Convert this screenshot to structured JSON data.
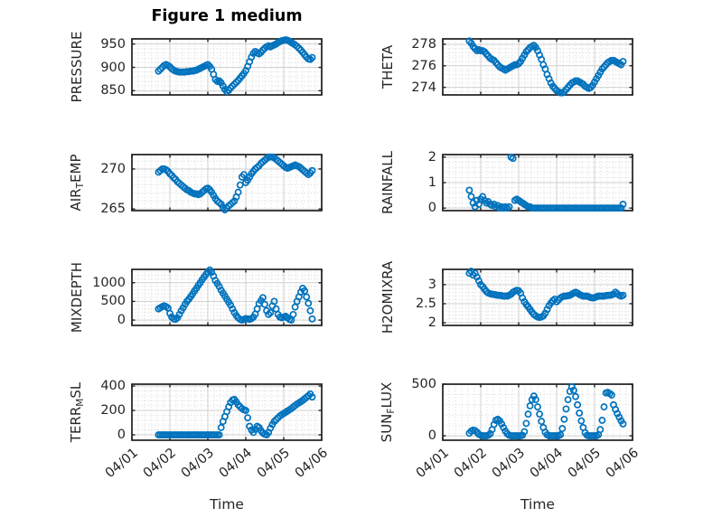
{
  "title": "Figure 1 medium",
  "colors": {
    "marker": "#0072BD",
    "axis": "#1f1f1f",
    "grid_major": "#cfcfcf",
    "grid_minor": "#d4d4d4",
    "text": "#262626",
    "background": "#ffffff"
  },
  "chart_data": {
    "type": "scatter",
    "marker": "o",
    "marker_color": "#0072BD",
    "xlabel": "Time",
    "xlim": [
      0,
      5
    ],
    "xtick_values": [
      0,
      1,
      2,
      3,
      4,
      5
    ],
    "xtick_labels": [
      "04/01",
      "04/02",
      "04/03",
      "04/04",
      "04/05",
      "04/06"
    ],
    "grid": "major solid + minor dotted",
    "legend": "none",
    "x": [
      0.7,
      0.75,
      0.8,
      0.85,
      0.9,
      0.95,
      1.0,
      1.05,
      1.1,
      1.15,
      1.2,
      1.25,
      1.3,
      1.35,
      1.4,
      1.45,
      1.5,
      1.55,
      1.6,
      1.65,
      1.7,
      1.75,
      1.8,
      1.85,
      1.9,
      1.95,
      2.0,
      2.05,
      2.1,
      2.15,
      2.2,
      2.25,
      2.3,
      2.35,
      2.4,
      2.45,
      2.5,
      2.55,
      2.6,
      2.65,
      2.7,
      2.75,
      2.8,
      2.85,
      2.9,
      2.95,
      3.0,
      3.05,
      3.1,
      3.15,
      3.2,
      3.25,
      3.3,
      3.35,
      3.4,
      3.45,
      3.5,
      3.55,
      3.6,
      3.65,
      3.7,
      3.75,
      3.8,
      3.85,
      3.9,
      3.95,
      4.0,
      4.05,
      4.1,
      4.15,
      4.2,
      4.25,
      4.3,
      4.35,
      4.4,
      4.45,
      4.5,
      4.55,
      4.6,
      4.65,
      4.7,
      4.75
    ],
    "series": [
      {
        "name": "PRESSURE",
        "row": 1,
        "col": 1,
        "show_xticks": false,
        "ylim": [
          841,
          961
        ],
        "ytick_values": [
          950,
          900,
          850
        ],
        "ytick_labels": [
          "950",
          "900",
          "850"
        ],
        "minor_step": 10,
        "values": [
          892,
          896,
          900,
          904,
          906,
          904,
          901,
          897,
          894,
          892,
          891,
          890,
          890,
          890,
          890,
          891,
          891,
          892,
          892,
          893,
          894,
          896,
          898,
          900,
          902,
          904,
          906,
          902,
          896,
          885,
          874,
          870,
          871,
          867,
          860,
          853,
          848,
          851,
          856,
          860,
          864,
          868,
          872,
          877,
          882,
          887,
          893,
          902,
          912,
          922,
          930,
          934,
          931,
          929,
          932,
          937,
          941,
          944,
          946,
          944,
          946,
          948,
          950,
          953,
          955,
          957,
          958,
          959,
          958,
          956,
          953,
          951,
          948,
          945,
          941,
          937,
          932,
          927,
          922,
          918,
          917,
          921
        ]
      },
      {
        "name": "THETA",
        "row": 1,
        "col": 2,
        "show_xticks": false,
        "ylim": [
          273.3,
          278.5
        ],
        "ytick_values": [
          278,
          276,
          274
        ],
        "ytick_labels": [
          "278",
          "276",
          "274"
        ],
        "minor_step": 0.4,
        "values": [
          278.3,
          278.1,
          277.8,
          277.6,
          277.4,
          277.5,
          277.4,
          277.4,
          277.3,
          277.1,
          276.9,
          276.7,
          276.6,
          276.5,
          276.3,
          276.1,
          275.9,
          275.8,
          275.7,
          275.6,
          275.7,
          275.8,
          275.9,
          276.0,
          276.1,
          276.1,
          276.2,
          276.4,
          276.7,
          277.0,
          277.3,
          277.5,
          277.7,
          277.8,
          277.9,
          277.7,
          277.4,
          277.0,
          276.6,
          276.1,
          275.7,
          275.2,
          274.8,
          274.4,
          274.1,
          273.9,
          273.7,
          273.6,
          273.5,
          273.5,
          273.6,
          273.8,
          274.0,
          274.2,
          274.4,
          274.5,
          274.6,
          274.6,
          274.5,
          274.4,
          274.3,
          274.1,
          274.0,
          273.9,
          274.0,
          274.2,
          274.5,
          274.8,
          275.1,
          275.4,
          275.7,
          275.9,
          276.1,
          276.3,
          276.4,
          276.5,
          276.5,
          276.4,
          276.3,
          276.2,
          276.1,
          276.4
        ]
      },
      {
        "name": "AIR_TEMP",
        "row": 2,
        "col": 1,
        "show_xticks": false,
        "ylim": [
          264.8,
          271.8
        ],
        "ytick_values": [
          270,
          265
        ],
        "ytick_labels": [
          "270",
          "265"
        ],
        "minor_step": 1,
        "values": [
          269.6,
          269.8,
          270.0,
          270.0,
          269.9,
          269.7,
          269.4,
          269.2,
          268.9,
          268.7,
          268.4,
          268.2,
          268.0,
          267.8,
          267.6,
          267.4,
          267.3,
          267.1,
          267.0,
          266.9,
          266.9,
          266.8,
          266.9,
          267.1,
          267.3,
          267.5,
          267.6,
          267.4,
          267.1,
          266.7,
          266.3,
          266.0,
          265.8,
          265.6,
          265.2,
          264.9,
          265.1,
          265.4,
          265.6,
          265.8,
          266.0,
          266.5,
          267.1,
          268.0,
          269.0,
          269.3,
          268.3,
          268.6,
          269.0,
          269.4,
          269.7,
          270.0,
          270.2,
          270.4,
          270.7,
          270.9,
          271.1,
          271.3,
          271.5,
          271.5,
          271.5,
          271.4,
          271.2,
          271.0,
          270.8,
          270.6,
          270.4,
          270.2,
          270.1,
          270.2,
          270.3,
          270.4,
          270.5,
          270.4,
          270.3,
          270.1,
          269.9,
          269.7,
          269.5,
          269.3,
          269.5,
          269.8
        ]
      },
      {
        "name": "RAINFALL",
        "row": 2,
        "col": 2,
        "show_xticks": false,
        "ylim": [
          -0.1,
          2.1
        ],
        "ytick_values": [
          2,
          1,
          0
        ],
        "ytick_labels": [
          "2",
          "1",
          "0"
        ],
        "minor_step": 0.2,
        "values": [
          0.7,
          0.45,
          0.2,
          0.05,
          0.3,
          0.15,
          0.35,
          0.45,
          0.3,
          0.2,
          0.25,
          0.15,
          0.1,
          0.15,
          0.05,
          0.1,
          0,
          0.05,
          0,
          0.05,
          0,
          0.05,
          2.0,
          1.95,
          0.3,
          0.35,
          0.3,
          0.25,
          0.2,
          0.15,
          0.1,
          0.05,
          0.05,
          0,
          0,
          0,
          0,
          0,
          0,
          0,
          0,
          0,
          0,
          0,
          0,
          0,
          0,
          0,
          0,
          0,
          0,
          0,
          0,
          0,
          0,
          0,
          0,
          0,
          0,
          0,
          0,
          0,
          0,
          0,
          0,
          0,
          0,
          0,
          0,
          0,
          0,
          0,
          0,
          0,
          0,
          0,
          0,
          0,
          0,
          0,
          0,
          0.15
        ]
      },
      {
        "name": "MIXDEPTH",
        "row": 3,
        "col": 1,
        "show_xticks": false,
        "ylim": [
          -143,
          1357
        ],
        "ytick_values": [
          1000,
          500,
          0
        ],
        "ytick_labels": [
          "1000",
          "500",
          "0"
        ],
        "minor_step": 100,
        "values": [
          300,
          330,
          360,
          380,
          360,
          320,
          180,
          80,
          30,
          20,
          60,
          150,
          250,
          330,
          420,
          500,
          560,
          630,
          700,
          780,
          850,
          930,
          1000,
          1080,
          1150,
          1220,
          1290,
          1340,
          1280,
          1180,
          1060,
          980,
          900,
          800,
          720,
          640,
          560,
          480,
          400,
          300,
          200,
          120,
          60,
          20,
          0,
          20,
          40,
          30,
          20,
          40,
          80,
          160,
          300,
          440,
          520,
          600,
          420,
          250,
          150,
          200,
          380,
          500,
          300,
          150,
          80,
          60,
          80,
          100,
          60,
          20,
          0,
          150,
          350,
          500,
          620,
          750,
          850,
          780,
          620,
          450,
          250,
          30
        ]
      },
      {
        "name": "H2OMIXRA",
        "row": 3,
        "col": 2,
        "show_xticks": false,
        "ylim": [
          1.93,
          3.4
        ],
        "ytick_values": [
          3,
          2.5,
          2
        ],
        "ytick_labels": [
          "3",
          "2.5",
          "2"
        ],
        "minor_step": 0.1,
        "values": [
          3.3,
          3.35,
          3.25,
          3.3,
          3.2,
          3.1,
          3.0,
          2.95,
          2.88,
          2.82,
          2.78,
          2.76,
          2.75,
          2.74,
          2.73,
          2.72,
          2.72,
          2.71,
          2.7,
          2.7,
          2.7,
          2.72,
          2.75,
          2.8,
          2.83,
          2.85,
          2.84,
          2.78,
          2.65,
          2.55,
          2.48,
          2.42,
          2.35,
          2.28,
          2.22,
          2.18,
          2.15,
          2.14,
          2.15,
          2.18,
          2.25,
          2.35,
          2.45,
          2.52,
          2.58,
          2.62,
          2.55,
          2.6,
          2.65,
          2.68,
          2.7,
          2.7,
          2.71,
          2.72,
          2.75,
          2.78,
          2.8,
          2.78,
          2.74,
          2.72,
          2.7,
          2.7,
          2.7,
          2.68,
          2.66,
          2.65,
          2.66,
          2.68,
          2.7,
          2.7,
          2.7,
          2.7,
          2.71,
          2.72,
          2.72,
          2.73,
          2.75,
          2.8,
          2.76,
          2.72,
          2.7,
          2.72
        ]
      },
      {
        "name": "TERR_MSL",
        "row": 4,
        "col": 1,
        "show_xticks": true,
        "ylim": [
          -44,
          415
        ],
        "ytick_values": [
          400,
          200,
          0
        ],
        "ytick_labels": [
          "400",
          "200",
          "0"
        ],
        "minor_step": 40,
        "values": [
          0,
          0,
          0,
          0,
          0,
          0,
          0,
          0,
          0,
          0,
          0,
          0,
          0,
          0,
          0,
          0,
          0,
          0,
          0,
          0,
          0,
          0,
          0,
          0,
          0,
          0,
          0,
          0,
          0,
          0,
          0,
          0,
          0,
          60,
          110,
          150,
          190,
          230,
          265,
          285,
          290,
          270,
          245,
          230,
          215,
          205,
          200,
          140,
          70,
          40,
          20,
          45,
          70,
          60,
          35,
          15,
          5,
          0,
          20,
          55,
          85,
          110,
          125,
          140,
          155,
          165,
          175,
          185,
          195,
          205,
          215,
          228,
          240,
          252,
          262,
          272,
          282,
          295,
          308,
          320,
          335,
          310
        ]
      },
      {
        "name": "SUN_FLUX",
        "row": 4,
        "col": 2,
        "show_xticks": true,
        "ylim": [
          -43,
          500
        ],
        "ytick_values": [
          500,
          0
        ],
        "ytick_labels": [
          "500",
          "0"
        ],
        "minor_step": 100,
        "values": [
          25,
          45,
          55,
          50,
          35,
          15,
          5,
          0,
          0,
          0,
          5,
          20,
          60,
          110,
          150,
          160,
          145,
          115,
          80,
          45,
          20,
          5,
          0,
          0,
          0,
          0,
          0,
          0,
          5,
          40,
          120,
          210,
          290,
          350,
          385,
          350,
          280,
          210,
          140,
          80,
          35,
          10,
          0,
          0,
          0,
          0,
          0,
          0,
          10,
          70,
          160,
          260,
          350,
          430,
          475,
          440,
          380,
          300,
          220,
          145,
          80,
          30,
          5,
          0,
          0,
          0,
          0,
          0,
          10,
          60,
          150,
          280,
          415,
          420,
          410,
          395,
          300,
          255,
          215,
          180,
          145,
          115
        ]
      }
    ]
  }
}
